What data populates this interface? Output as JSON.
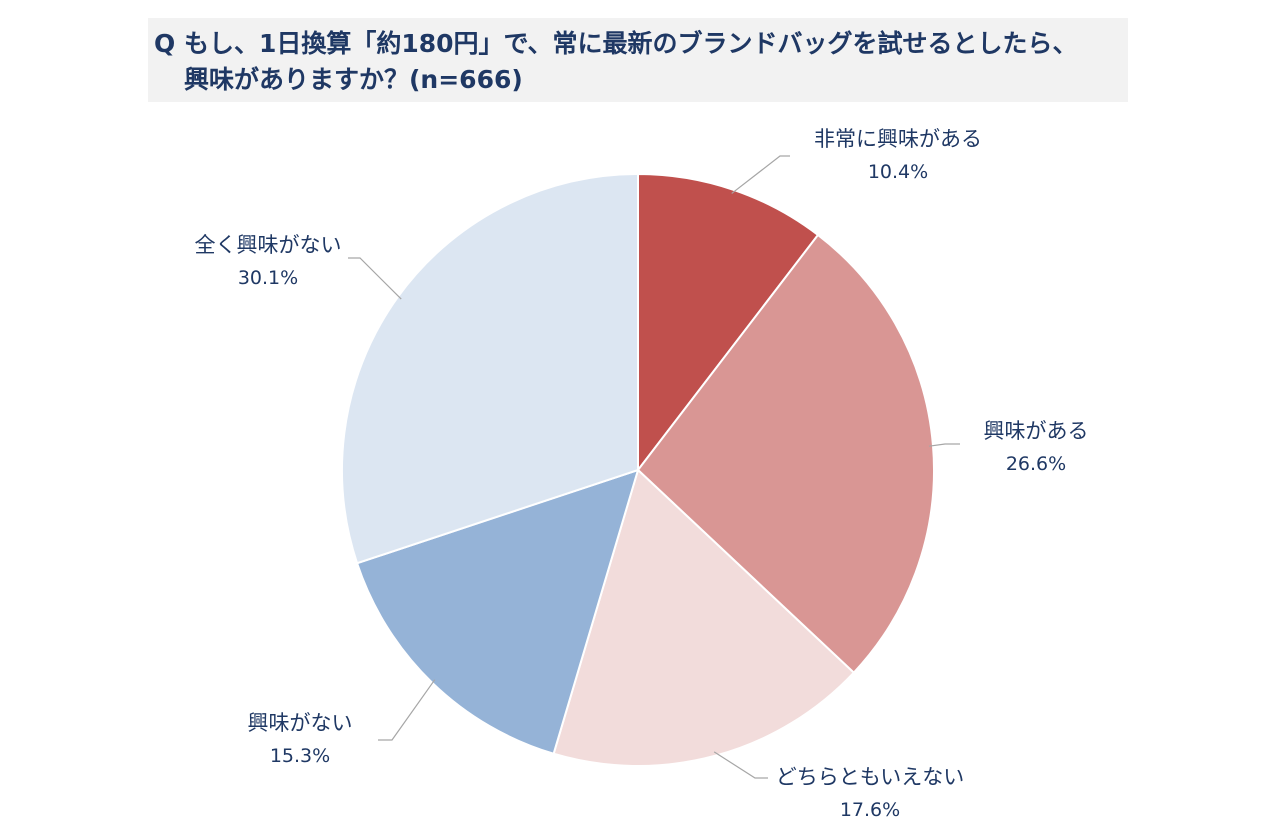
{
  "title": {
    "line1": "Q もし、1日換算「約180円」で、常に最新のブランドバッグを試せるとしたら、",
    "line2": "興味がありますか？(n=666)"
  },
  "chart_data": {
    "type": "pie",
    "start": "12 o'clock",
    "direction": "clockwise",
    "slices": [
      {
        "label": "非常に興味がある",
        "value": 10.4,
        "display": "10.4%",
        "color": "#c0504d"
      },
      {
        "label": "興味がある",
        "value": 26.6,
        "display": "26.6%",
        "color": "#d99694"
      },
      {
        "label": "どちらともいえない",
        "value": 17.6,
        "display": "17.6%",
        "color": "#f2dcdb"
      },
      {
        "label": "興味がない",
        "value": 15.3,
        "display": "15.3%",
        "color": "#95b3d7"
      },
      {
        "label": "全く興味がない",
        "value": 30.1,
        "display": "30.1%",
        "color": "#dce6f2"
      }
    ],
    "legend": "none"
  }
}
